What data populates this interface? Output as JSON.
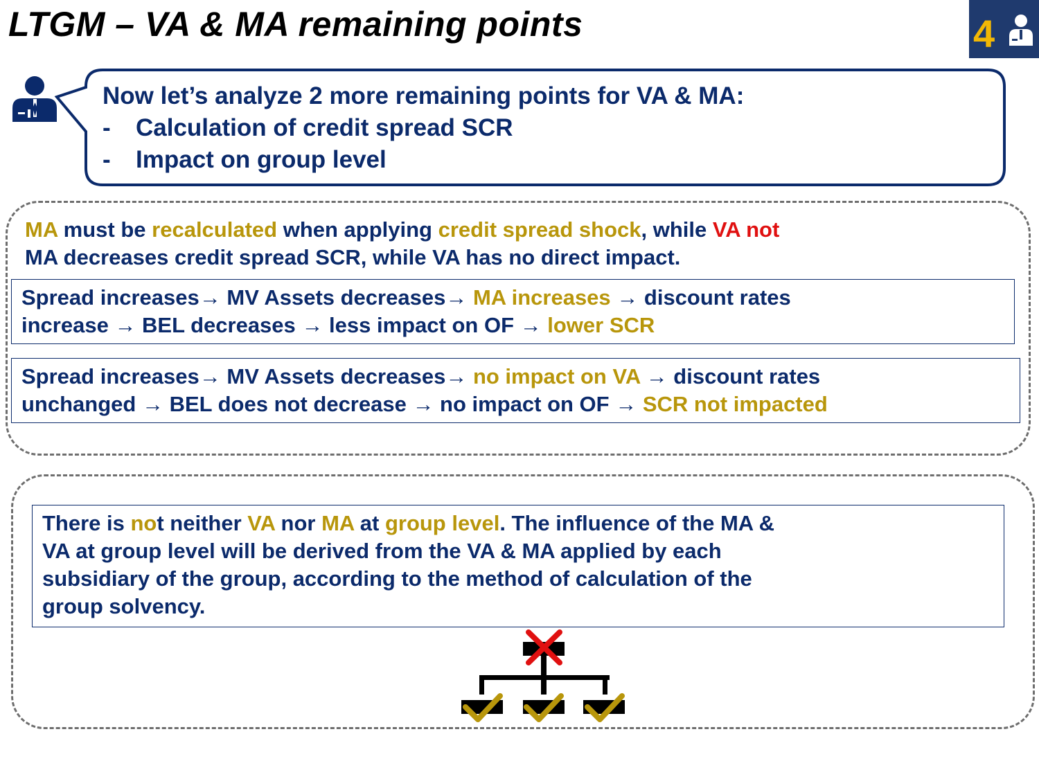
{
  "title": "LTGM – VA & MA remaining points",
  "logo": {
    "number": "4",
    "icon": "person-icon"
  },
  "speaker": {
    "icon": "speaker-person-icon",
    "intro": "Now let’s analyze 2 more remaining points for VA & MA:",
    "bullets": [
      {
        "dash": "-",
        "text": "Calculation of credit spread SCR"
      },
      {
        "dash": "-",
        "text": "Impact on group level"
      }
    ]
  },
  "credit_spread": {
    "line1": {
      "ma": "MA",
      "must_be": " must be ",
      "recalculated": "recalculated",
      "when_applying": " when applying ",
      "shock": "credit spread shock",
      "while": ", while ",
      "va_not": "VA not"
    },
    "line2": "MA decreases credit spread SCR, while VA has no direct impact.",
    "ma_chain": {
      "line1_a": "Spread increases→ MV Assets decreases→ ",
      "line1_b": "MA increases",
      "line1_c": " → discount rates",
      "line2_a": "increase → BEL decreases → less impact on OF → ",
      "line2_b": "lower SCR"
    },
    "va_chain": {
      "line1_a": "Spread increases→ MV Assets decreases→ ",
      "line1_b": "no impact on VA",
      "line1_c": " → discount rates",
      "line2_a": "unchanged → BEL does not decrease → no impact on OF → ",
      "line2_b": "SCR not impacted"
    }
  },
  "group_level": {
    "s1": "There is ",
    "s2": "no",
    "s3": "t neither ",
    "s4": "VA",
    "s5": " nor ",
    "s6": "MA",
    "s7": " at ",
    "s8": "group level",
    "s9": ". The influence of the MA &",
    "line2": "VA at group level will be derived from the VA  & MA applied by each",
    "line3": "subsidiary of the group, according to the method of calculation of the",
    "line4": "group solvency."
  },
  "org_chart": {
    "parent_status": "cross-icon",
    "children_status": [
      "check-icon",
      "check-icon",
      "check-icon"
    ],
    "colors": {
      "cross": "#e01010",
      "check": "#b8960b",
      "boxes": "#000000"
    }
  },
  "colors": {
    "navy": "#0b2a6b",
    "gold": "#b8960b",
    "red": "#e01010",
    "logo_bg": "#1f3a6e"
  }
}
